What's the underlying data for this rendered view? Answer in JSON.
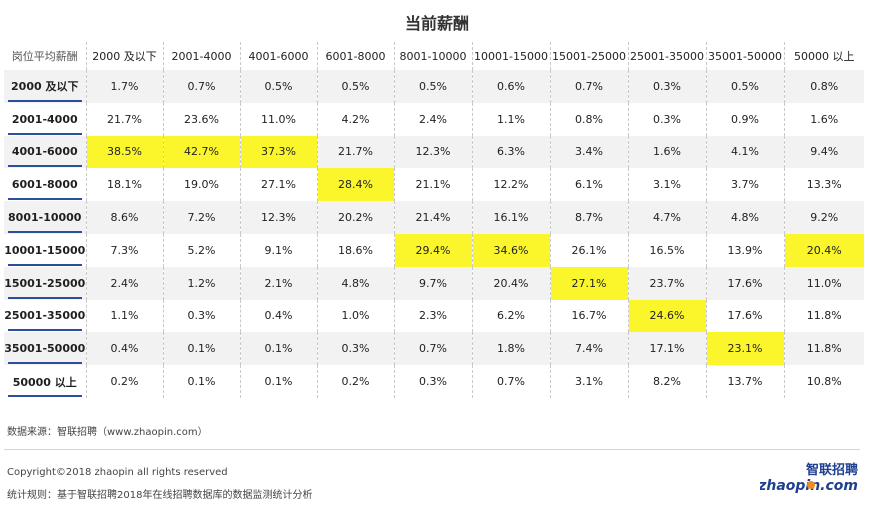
{
  "title": "当前薪酬",
  "footer": {
    "source": "数据来源：智联招聘（www.zhaopin.com）",
    "copyright": "Copyright©2018 zhaopin all rights reserved",
    "rule": "统计规则：基于智联招聘2018年在线招聘数据库的数据监测统计分析",
    "logo_cn": "智联招聘",
    "logo_en": "zhaopin.com"
  },
  "colors": {
    "highlight": "#fbf62c",
    "row_underline": "#2a4f9c",
    "logo_blue": "#1f3f8f",
    "logo_orange": "#f28c1a"
  },
  "chart_data": {
    "type": "table",
    "corner_label": "岗位平均薪酬",
    "columns": [
      "2000 及以下",
      "2001-4000",
      "4001-6000",
      "6001-8000",
      "8001-10000",
      "10001-15000",
      "15001-25000",
      "25001-35000",
      "35001-50000",
      "50000 以上"
    ],
    "rows": [
      {
        "label": "2000 及以下",
        "values": [
          "1.7%",
          "0.7%",
          "0.5%",
          "0.5%",
          "0.5%",
          "0.6%",
          "0.7%",
          "0.3%",
          "0.5%",
          "0.8%"
        ],
        "highlight": []
      },
      {
        "label": "2001-4000",
        "values": [
          "21.7%",
          "23.6%",
          "11.0%",
          "4.2%",
          "2.4%",
          "1.1%",
          "0.8%",
          "0.3%",
          "0.9%",
          "1.6%"
        ],
        "highlight": []
      },
      {
        "label": "4001-6000",
        "values": [
          "38.5%",
          "42.7%",
          "37.3%",
          "21.7%",
          "12.3%",
          "6.3%",
          "3.4%",
          "1.6%",
          "4.1%",
          "9.4%"
        ],
        "highlight": [
          0,
          1,
          2
        ]
      },
      {
        "label": "6001-8000",
        "values": [
          "18.1%",
          "19.0%",
          "27.1%",
          "28.4%",
          "21.1%",
          "12.2%",
          "6.1%",
          "3.1%",
          "3.7%",
          "13.3%"
        ],
        "highlight": [
          3
        ]
      },
      {
        "label": "8001-10000",
        "values": [
          "8.6%",
          "7.2%",
          "12.3%",
          "20.2%",
          "21.4%",
          "16.1%",
          "8.7%",
          "4.7%",
          "4.8%",
          "9.2%"
        ],
        "highlight": []
      },
      {
        "label": "10001-15000",
        "values": [
          "7.3%",
          "5.2%",
          "9.1%",
          "18.6%",
          "29.4%",
          "34.6%",
          "26.1%",
          "16.5%",
          "13.9%",
          "20.4%"
        ],
        "highlight": [
          4,
          5,
          9
        ]
      },
      {
        "label": "15001-25000",
        "values": [
          "2.4%",
          "1.2%",
          "2.1%",
          "4.8%",
          "9.7%",
          "20.4%",
          "27.1%",
          "23.7%",
          "17.6%",
          "11.0%"
        ],
        "highlight": [
          6
        ]
      },
      {
        "label": "25001-35000",
        "values": [
          "1.1%",
          "0.3%",
          "0.4%",
          "1.0%",
          "2.3%",
          "6.2%",
          "16.7%",
          "24.6%",
          "17.6%",
          "11.8%"
        ],
        "highlight": [
          7
        ]
      },
      {
        "label": "35001-50000",
        "values": [
          "0.4%",
          "0.1%",
          "0.1%",
          "0.3%",
          "0.7%",
          "1.8%",
          "7.4%",
          "17.1%",
          "23.1%",
          "11.8%"
        ],
        "highlight": [
          8
        ]
      },
      {
        "label": "50000 以上",
        "values": [
          "0.2%",
          "0.1%",
          "0.1%",
          "0.2%",
          "0.3%",
          "0.7%",
          "3.1%",
          "8.2%",
          "13.7%",
          "10.8%"
        ],
        "highlight": []
      }
    ]
  }
}
